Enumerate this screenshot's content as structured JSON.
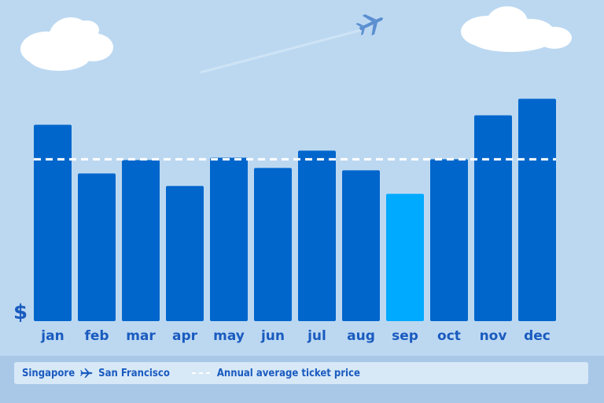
{
  "chart_data": {
    "type": "bar",
    "y_axis_symbol": "$",
    "categories": [
      "jan",
      "feb",
      "mar",
      "apr",
      "may",
      "jun",
      "jul",
      "aug",
      "sep",
      "oct",
      "nov",
      "dec"
    ],
    "values": [
      250,
      188,
      205,
      172,
      208,
      195,
      217,
      192,
      162,
      206,
      262,
      283
    ],
    "highlight_category": "sep",
    "average": 206,
    "ylim": [
      0,
      300
    ],
    "grid": false,
    "colors": {
      "bar": "#0066cc",
      "highlight": "#00aaff",
      "average_line": "#ffffff",
      "background": "#bcd8f1"
    }
  },
  "legend": {
    "from": "Singapore",
    "to": "San Francisco",
    "average_label": "Annual average ticket price",
    "route_icon": "airplane-icon"
  }
}
